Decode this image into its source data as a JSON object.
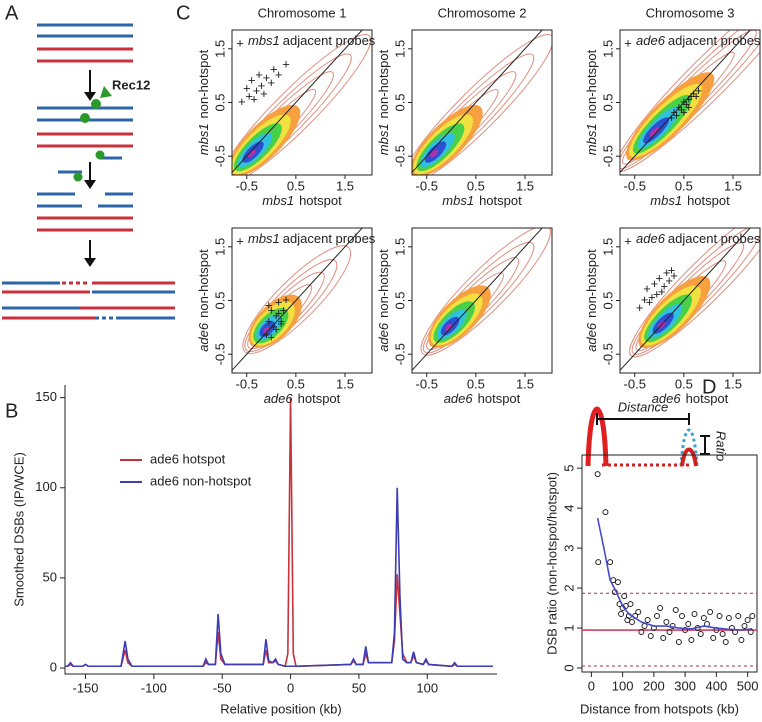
{
  "panel_labels": [
    "A",
    "B",
    "C",
    "D"
  ],
  "diagram": {
    "enzyme": "Rec12"
  },
  "chart_data": [
    {
      "type": "line",
      "x_label": "Relative position (kb)",
      "y_label": "Smoothed DSBs (IP/WCE)",
      "xlim": [
        -165,
        151
      ],
      "ylim": [
        -3.3,
        157
      ],
      "xticks": [
        -150,
        -100,
        -50,
        0,
        50,
        100
      ],
      "yticks": [
        0,
        50,
        100,
        150
      ],
      "x": [
        -165,
        -163,
        -161,
        -159,
        -152,
        -150,
        -148,
        -124,
        -121,
        -119,
        -116,
        -64,
        -62,
        -60,
        -55,
        -53,
        -51,
        -48,
        -20,
        -18,
        -16,
        -13,
        -11,
        -9,
        -4,
        -2,
        0,
        2,
        4,
        44,
        46,
        48,
        53,
        55,
        57,
        74,
        76,
        78,
        80,
        82,
        85,
        88,
        90,
        92,
        97,
        99,
        101,
        118,
        120,
        122,
        148
      ],
      "series": [
        {
          "name": "ade6 hotspot",
          "color": "#c8323c",
          "values": [
            1,
            1,
            2,
            1,
            1,
            2,
            1,
            1,
            10,
            3,
            1,
            1,
            3,
            2,
            2,
            20,
            5,
            2,
            2,
            10,
            3,
            3,
            4,
            2,
            1,
            8,
            150,
            8,
            1,
            2,
            4,
            2,
            2,
            8,
            3,
            3,
            15,
            52,
            30,
            8,
            3,
            3,
            7,
            3,
            2,
            4,
            2,
            1,
            2,
            1,
            1
          ]
        },
        {
          "name": "ade6 non-hotspot",
          "color": "#3c3cb4",
          "values": [
            1,
            1,
            3,
            1,
            1,
            2,
            1,
            1,
            15,
            5,
            1,
            1,
            5,
            2,
            2,
            30,
            8,
            2,
            2,
            16,
            4,
            3,
            5,
            2,
            1,
            1,
            1,
            1,
            1,
            2,
            5,
            2,
            2,
            12,
            3,
            3,
            20,
            100,
            40,
            5,
            3,
            3,
            9,
            3,
            2,
            5,
            2,
            1,
            3,
            1,
            1
          ]
        }
      ]
    },
    {
      "type": "scatter",
      "x_label": "Distance from hotspots (kb)",
      "y_label": "DSB ratio (non-hotspot/hotspot)",
      "inset_label": "Distance",
      "inset_ratio_label": "Ratio",
      "xlim": [
        -30,
        530
      ],
      "ylim": [
        -0.1,
        5.33
      ],
      "xticks": [
        0,
        100,
        200,
        300,
        400,
        500
      ],
      "yticks": [
        0,
        1,
        2,
        3,
        4,
        5
      ],
      "points": {
        "x": [
          20,
          22,
          45,
          60,
          70,
          75,
          85,
          90,
          95,
          100,
          105,
          110,
          115,
          120,
          125,
          130,
          140,
          150,
          160,
          170,
          180,
          190,
          200,
          210,
          220,
          230,
          240,
          250,
          260,
          270,
          280,
          290,
          300,
          310,
          320,
          330,
          340,
          350,
          360,
          370,
          380,
          390,
          400,
          410,
          420,
          430,
          440,
          450,
          460,
          470,
          480,
          490,
          500,
          510,
          515
        ],
        "y": [
          4.85,
          2.65,
          3.9,
          2.65,
          2.2,
          1.9,
          2.15,
          1.6,
          1.35,
          1.5,
          1.8,
          1.55,
          1.2,
          1.3,
          1.6,
          1.15,
          1.3,
          1.4,
          0.9,
          1.05,
          1.2,
          0.8,
          1.0,
          1.3,
          1.5,
          0.75,
          1.15,
          0.9,
          1.05,
          1.45,
          0.65,
          1.3,
          0.95,
          1.1,
          0.7,
          1.35,
          1.0,
          0.85,
          1.25,
          1.1,
          1.4,
          0.75,
          0.95,
          1.3,
          0.85,
          0.65,
          1.25,
          1.0,
          0.9,
          1.3,
          0.7,
          1.05,
          1.2,
          0.9,
          1.3
        ]
      },
      "trend": {
        "color": "#4a4ac8",
        "x": [
          20,
          40,
          60,
          80,
          100,
          120,
          140,
          160,
          180,
          200,
          240,
          280,
          320,
          360,
          400,
          440,
          480,
          515
        ],
        "y": [
          3.75,
          3.0,
          2.2,
          1.9,
          1.55,
          1.35,
          1.25,
          1.15,
          1.1,
          1.05,
          1.05,
          1.0,
          0.98,
          1.05,
          1.0,
          0.97,
          0.95,
          0.98
        ]
      },
      "hlines": [
        {
          "value": 0.95,
          "color": "#d04060",
          "style": "solid"
        },
        {
          "value": 1.87,
          "color": "#a03050",
          "style": "dashed"
        },
        {
          "value": 0.05,
          "color": "#a03050",
          "style": "dashed"
        }
      ]
    },
    {
      "type": "density",
      "title": "Chromosome 1",
      "x_label": {
        "gene": "mbs1",
        "text": "hotspot"
      },
      "y_label": {
        "gene": "mbs1",
        "text": "non-hotspot"
      },
      "legend": {
        "marker": "+",
        "gene": "mbs1",
        "text": "adjacent probes"
      },
      "xlim": [
        -0.8,
        2.05
      ],
      "ylim": [
        -0.85,
        1.85
      ],
      "xticks": [
        -0.5,
        0.5,
        1.5
      ],
      "yticks": [
        -0.5,
        0.5,
        1.5
      ],
      "points": {
        "x": [
          -0.6,
          -0.5,
          -0.45,
          -0.4,
          -0.3,
          -0.25,
          -0.2,
          -0.1,
          0.0,
          0.05,
          0.15,
          0.3,
          -0.35,
          -0.15
        ],
        "y": [
          0.5,
          0.75,
          0.6,
          0.9,
          0.7,
          1.0,
          0.8,
          0.95,
          0.85,
          1.1,
          1.0,
          1.2,
          0.55,
          0.65
        ]
      }
    },
    {
      "type": "density",
      "title": "Chromosome 2",
      "x_label": {
        "gene": "mbs1",
        "text": "hotspot"
      },
      "y_label": {
        "gene": "mbs1",
        "text": "non-hotspot"
      },
      "xlim": [
        -0.8,
        2.05
      ],
      "ylim": [
        -0.85,
        1.85
      ],
      "xticks": [
        -0.5,
        0.5,
        1.5
      ],
      "yticks": [
        -0.5,
        0.5,
        1.5
      ]
    },
    {
      "type": "density",
      "title": "Chromosome 3",
      "x_label": {
        "gene": "mbs1",
        "text": "hotspot"
      },
      "y_label": {
        "gene": "mbs1",
        "text": "non-hotspot"
      },
      "legend": {
        "marker": "+",
        "gene": "ade6",
        "text": "adjacent probes"
      },
      "xlim": [
        -0.8,
        2.05
      ],
      "ylim": [
        -0.85,
        1.85
      ],
      "xticks": [
        -0.5,
        0.5,
        1.5
      ],
      "yticks": [
        -0.5,
        0.5,
        1.5
      ],
      "points": {
        "x": [
          0.25,
          0.3,
          0.35,
          0.4,
          0.45,
          0.5,
          0.55,
          0.6,
          0.65,
          0.7,
          0.75,
          0.8,
          0.5,
          0.6
        ],
        "y": [
          0.2,
          0.3,
          0.25,
          0.4,
          0.35,
          0.5,
          0.45,
          0.55,
          0.6,
          0.65,
          0.6,
          0.7,
          0.3,
          0.4
        ]
      }
    },
    {
      "type": "density",
      "x_label": {
        "gene": "ade6",
        "text": "hotspot"
      },
      "y_label": {
        "gene": "ade6",
        "text": "non-hotspot"
      },
      "legend": {
        "marker": "+",
        "gene": "mbs1",
        "text": "adjacent probes"
      },
      "xlim": [
        -0.8,
        2.05
      ],
      "ylim": [
        -0.85,
        1.85
      ],
      "xticks": [
        -0.5,
        0.5,
        1.5
      ],
      "yticks": [
        -0.5,
        0.5,
        1.5
      ],
      "points": {
        "x": [
          -0.1,
          -0.05,
          0.0,
          0.05,
          0.1,
          0.15,
          0.2,
          0.25,
          0.3,
          0.0,
          0.1,
          0.2,
          -0.05,
          0.15
        ],
        "y": [
          -0.15,
          0.1,
          0.3,
          0.0,
          0.2,
          0.45,
          0.1,
          0.3,
          0.5,
          -0.2,
          -0.05,
          0.05,
          0.4,
          0.25
        ]
      }
    },
    {
      "type": "density",
      "x_label": {
        "gene": "ade6",
        "text": "hotspot"
      },
      "y_label": {
        "gene": "ade6",
        "text": "non-hotspot"
      },
      "xlim": [
        -0.8,
        2.05
      ],
      "ylim": [
        -0.85,
        1.85
      ],
      "xticks": [
        -0.5,
        0.5,
        1.5
      ],
      "yticks": [
        -0.5,
        0.5,
        1.5
      ]
    },
    {
      "type": "density",
      "x_label": {
        "gene": "ade6",
        "text": "hotspot"
      },
      "y_label": {
        "gene": "ade6",
        "text": "non-hotspot"
      },
      "legend": {
        "marker": "+",
        "gene": "ade6",
        "text": "adjacent probes"
      },
      "xlim": [
        -0.8,
        2.05
      ],
      "ylim": [
        -0.85,
        1.85
      ],
      "xticks": [
        -0.5,
        0.5,
        1.5
      ],
      "yticks": [
        -0.5,
        0.5,
        1.5
      ],
      "points": {
        "x": [
          -0.4,
          -0.3,
          -0.25,
          -0.2,
          -0.1,
          -0.05,
          0.0,
          0.1,
          0.15,
          0.2,
          0.3,
          -0.15,
          0.05,
          0.25
        ],
        "y": [
          0.35,
          0.5,
          0.7,
          0.45,
          0.8,
          0.6,
          0.9,
          0.75,
          1.0,
          0.85,
          0.95,
          0.55,
          0.65,
          1.05
        ]
      }
    }
  ]
}
